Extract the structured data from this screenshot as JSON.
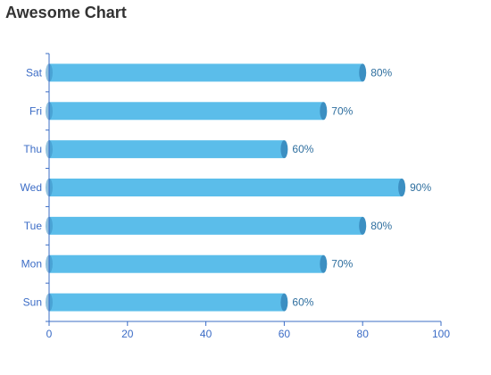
{
  "title": "Awesome Chart",
  "colors": {
    "bar": "#5bbdea",
    "bar_cap": "#3c8fc2",
    "axis": "#3b6cc6",
    "label": "#2f6f9f",
    "title": "#333333"
  },
  "chart_data": {
    "type": "bar",
    "orientation": "horizontal",
    "title": "Awesome Chart",
    "categories": [
      "Sun",
      "Mon",
      "Tue",
      "Wed",
      "Thu",
      "Fri",
      "Sat"
    ],
    "values": [
      60,
      70,
      80,
      90,
      60,
      70,
      80
    ],
    "data_labels": [
      "60%",
      "70%",
      "80%",
      "90%",
      "60%",
      "70%",
      "80%"
    ],
    "x_ticks": [
      "0",
      "20",
      "40",
      "60",
      "80",
      "100"
    ],
    "xlim": [
      0,
      100
    ],
    "xlabel": "",
    "ylabel": "",
    "grid": false,
    "legend": "none"
  }
}
